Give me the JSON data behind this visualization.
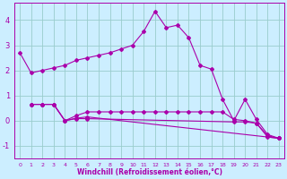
{
  "background_color": "#cceeff",
  "grid_color": "#99cccc",
  "line_color": "#aa00aa",
  "xlabel": "Windchill (Refroidissement éolien,°C)",
  "xlim": [
    -0.5,
    23.5
  ],
  "ylim": [
    -1.5,
    4.7
  ],
  "yticks": [
    -1,
    0,
    1,
    2,
    3,
    4
  ],
  "xticks": [
    0,
    1,
    2,
    3,
    4,
    5,
    6,
    7,
    8,
    9,
    10,
    11,
    12,
    13,
    14,
    15,
    16,
    17,
    18,
    19,
    20,
    21,
    22,
    23
  ],
  "series": [
    {
      "x": [
        0,
        1,
        2,
        3,
        4,
        5,
        6,
        7,
        8,
        9,
        10,
        11,
        12,
        13,
        14,
        15,
        16,
        17,
        18,
        19,
        20,
        21,
        22,
        23
      ],
      "y": [
        2.7,
        1.9,
        2.0,
        2.1,
        2.2,
        2.4,
        2.5,
        2.6,
        2.7,
        2.85,
        3.0,
        3.55,
        4.35,
        3.7,
        3.8,
        3.3,
        2.2,
        2.05,
        0.85,
        0.0,
        0.85,
        0.05,
        -0.55,
        -0.7
      ]
    },
    {
      "x": [
        1,
        2,
        3,
        4,
        5,
        6,
        7,
        8,
        9,
        10,
        11,
        12,
        13,
        14,
        15,
        16,
        17,
        18,
        19,
        20,
        21,
        22,
        23
      ],
      "y": [
        0.65,
        0.65,
        0.65,
        0.0,
        0.2,
        0.35,
        0.35,
        0.35,
        0.35,
        0.35,
        0.35,
        0.35,
        0.35,
        0.35,
        0.35,
        0.35,
        0.35,
        0.35,
        0.05,
        0.0,
        -0.1,
        -0.6,
        -0.7
      ]
    },
    {
      "x": [
        1,
        2,
        3,
        4,
        5,
        6,
        23
      ],
      "y": [
        0.65,
        0.65,
        0.65,
        0.0,
        0.1,
        0.15,
        -0.7
      ]
    },
    {
      "x": [
        1,
        2,
        3,
        4,
        5,
        6,
        19,
        20,
        21,
        22,
        23
      ],
      "y": [
        0.65,
        0.65,
        0.65,
        0.0,
        0.08,
        0.08,
        -0.05,
        -0.05,
        -0.1,
        -0.65,
        -0.7
      ]
    }
  ]
}
